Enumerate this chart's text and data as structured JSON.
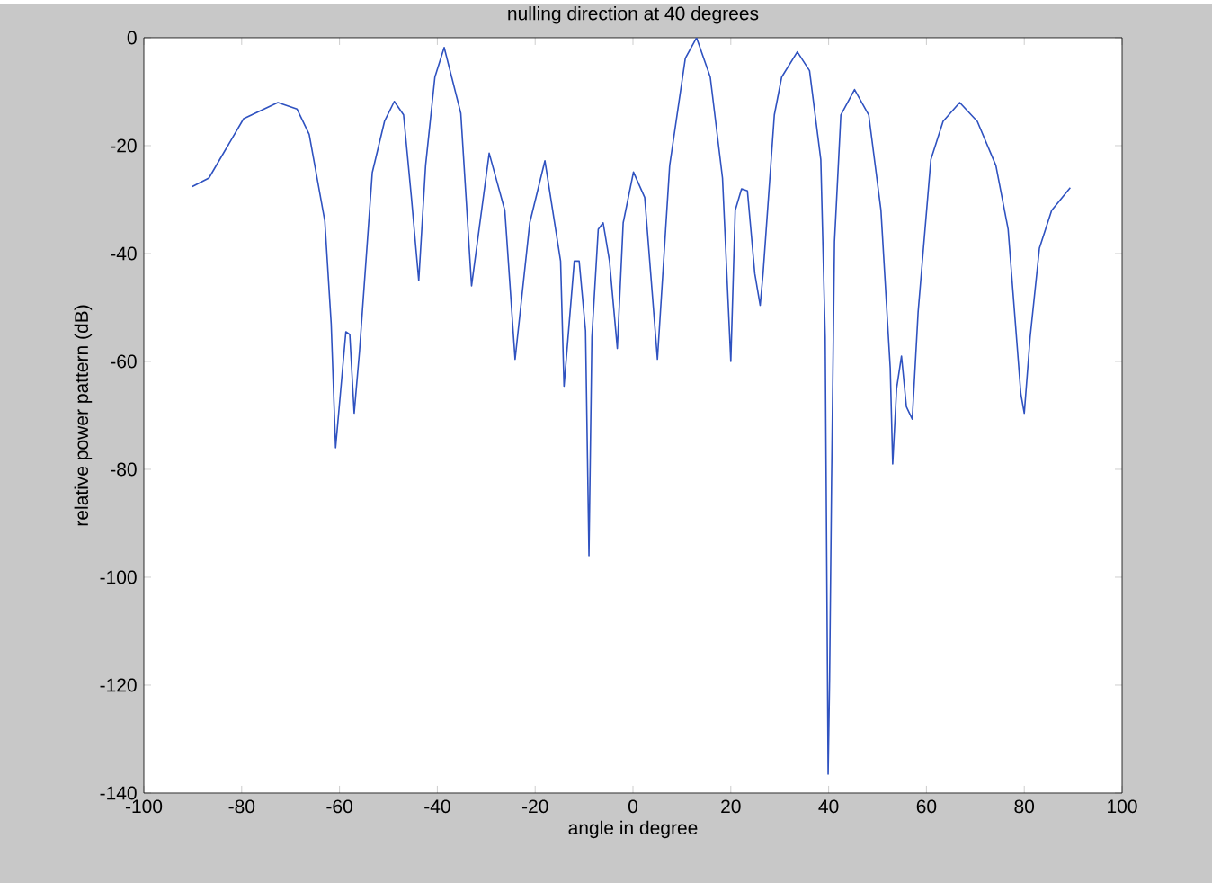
{
  "chart_data": {
    "type": "line",
    "title": "nulling direction at 40 degrees",
    "xlabel": "angle in degree",
    "ylabel": "relative power pattern (dB)",
    "x": [
      -90.1,
      -86.7,
      -79.6,
      -72.6,
      -68.7,
      -66.2,
      -63,
      -61.7,
      -60.8,
      -58.7,
      -57.9,
      -57,
      -55.9,
      -53.3,
      -50.8,
      -48.8,
      -46.9,
      -45.3,
      -43.8,
      -42.4,
      -40.5,
      -38.6,
      -35.2,
      -33,
      -29.4,
      -26.2,
      -24.1,
      -21.1,
      -18,
      -14.8,
      -14.1,
      -12,
      -11,
      -9.7,
      -9,
      -8.4,
      -7.1,
      -6.1,
      -4.8,
      -3.2,
      -2,
      0.1,
      2.4,
      5,
      7.5,
      10.7,
      13,
      15.8,
      18.3,
      20,
      20.9,
      22.2,
      23.4,
      24.9,
      26,
      26.6,
      28.9,
      30.4,
      33.6,
      36.1,
      38.4,
      39.3,
      39.9,
      40.2,
      40.6,
      41.2,
      42.5,
      45.3,
      48.2,
      50.7,
      52.6,
      53.1,
      53.9,
      54.9,
      55.9,
      57.1,
      58.3,
      60.9,
      63.4,
      66.8,
      70.4,
      74.2,
      76.7,
      79.3,
      80,
      81.2,
      83.1,
      85.6,
      89.4
    ],
    "series": [
      {
        "color": "#2f52c0",
        "values": [
          -27.6,
          -26,
          -15,
          -12,
          -13.2,
          -17.9,
          -34,
          -53,
          -76,
          -54.5,
          -55,
          -69.6,
          -58,
          -25,
          -15.5,
          -11.8,
          -14.3,
          -29.6,
          -45,
          -23.7,
          -7.3,
          -1.8,
          -14,
          -46,
          -21.4,
          -32,
          -59.6,
          -34.3,
          -22.8,
          -41.4,
          -64.6,
          -41.4,
          -41.4,
          -54.3,
          -96,
          -55.5,
          -35.5,
          -34.3,
          -41.4,
          -57.6,
          -34.3,
          -24.9,
          -29.6,
          -59.6,
          -23.7,
          -3.8,
          0,
          -7.3,
          -26,
          -60,
          -32,
          -28,
          -28.4,
          -43.7,
          -49.6,
          -43.7,
          -14.3,
          -7.3,
          -2.6,
          -6.1,
          -22.6,
          -55.5,
          -136.5,
          -118.9,
          -82.5,
          -37.8,
          -14.3,
          -9.6,
          -14.3,
          -32,
          -61.3,
          -79,
          -65,
          -59,
          -68.4,
          -70.7,
          -50.8,
          -22.6,
          -15.5,
          -12,
          -15.5,
          -23.7,
          -35.5,
          -66,
          -69.6,
          -55.5,
          -39,
          -32,
          -27.8
        ]
      }
    ],
    "xlim": [
      -100,
      100
    ],
    "ylim": [
      -140,
      0
    ],
    "xticks": [
      -100,
      -80,
      -60,
      -40,
      -20,
      0,
      20,
      40,
      60,
      80,
      100
    ],
    "yticks": [
      -140,
      -120,
      -100,
      -80,
      -60,
      -40,
      -20,
      0
    ],
    "marker": "none",
    "line_style": "solid"
  }
}
